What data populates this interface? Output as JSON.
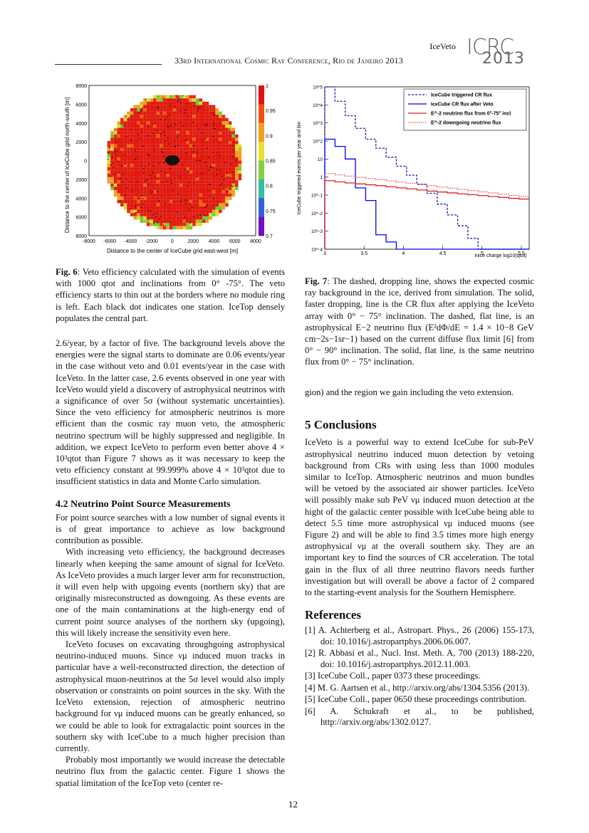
{
  "header": {
    "short_title": "IceVeto",
    "conference": "33rd International Cosmic Ray Conference, Rio de Janeiro 2013",
    "logo_top": "ICRC",
    "logo_bottom": "2013"
  },
  "fig6": {
    "ylabel": "Distance to the center of IceCube grid north-south [m]",
    "xlabel": "Distance to the center of IceCube grid east-west [m]",
    "xticks": [
      "-8000",
      "-6000",
      "-4000",
      "-2000",
      "0",
      "2000",
      "4000",
      "6000",
      "8000"
    ],
    "yticks": [
      "8000",
      "6000",
      "4000",
      "2000",
      "0",
      "2000",
      "4000",
      "6000",
      "8000"
    ],
    "cticks": [
      "1",
      "0.95",
      "0.9",
      "0.85",
      "0.8",
      "0.75",
      "0.7"
    ],
    "caption_label": "Fig. 6",
    "caption": ": Veto efficiency calculated with the simulation of events with 1000 qtot and inclinations from 0° -75°. The veto efficiency starts to thin out at the borders where no module ring is left. Each black dot indicates one station. IceTop densely populates the central part."
  },
  "chart_data": {
    "type": "line",
    "ylabel": "IceCube triggered events per year and bin",
    "xlabel": "Inice charge log10(qtot)",
    "xlim": [
      3,
      5.6
    ],
    "ylim_log10": [
      -4,
      5
    ],
    "xticks": [
      "3",
      "3.5",
      "4",
      "4.5",
      "5",
      "5.5"
    ],
    "yticks": [
      "10^5",
      "10^4",
      "10^3",
      "10^2",
      "10",
      "1",
      "10^-1",
      "10^-2",
      "10^-3",
      "10^-4"
    ],
    "bin_edges": [
      3.0,
      3.13,
      3.26,
      3.39,
      3.52,
      3.65,
      3.78,
      3.91,
      4.04,
      4.17,
      4.3,
      4.43,
      4.56,
      4.69,
      4.82,
      4.95,
      5.08,
      5.21,
      5.34,
      5.47,
      5.6
    ],
    "series": [
      {
        "name": "IceCube triggered CR flux",
        "style": "dashed",
        "color": "#1a1aa8",
        "log10_values": [
          5,
          4.2,
          3.4,
          2.7,
          2.1,
          1.6,
          1.1,
          0.6,
          0.1,
          -0.4,
          -0.9,
          -1.5,
          -2.1,
          -2.7,
          -3.4,
          -4,
          -4,
          -4,
          -4,
          -4
        ]
      },
      {
        "name": "IceCube CR flux after Veto",
        "style": "solid",
        "color": "#0000ee",
        "log10_values": [
          2.1,
          1.7,
          1.0,
          -0.6,
          -1.3,
          -3.2,
          -3.6,
          -4,
          -4,
          -4,
          -4,
          -4,
          -4,
          -4,
          -4,
          -4,
          -4,
          -4,
          -4,
          -4
        ]
      },
      {
        "name": "E^-2 neutrino flux from 0°-75° incl",
        "style": "solid",
        "color": "#e02020",
        "log10_values": [
          -0.2,
          -0.27,
          -0.33,
          -0.38,
          -0.43,
          -0.48,
          -0.54,
          -0.6,
          -0.66,
          -0.72,
          -0.78,
          -0.83,
          -0.88,
          -0.93,
          -0.98,
          -1.03,
          -1.08,
          -1.13,
          -1.18,
          -1.22
        ]
      },
      {
        "name": "E^-2 downgoing neutrino flux",
        "style": "dotted",
        "color": "#e05050",
        "log10_values": [
          0.2,
          0.12,
          0.05,
          -0.02,
          -0.08,
          -0.15,
          -0.22,
          -0.28,
          -0.35,
          -0.42,
          -0.48,
          -0.55,
          -0.62,
          -0.68,
          -0.75,
          -0.82,
          -0.88,
          -0.95,
          -1.02,
          -1.08
        ]
      }
    ]
  },
  "fig7": {
    "caption_label": "Fig. 7",
    "caption": ": The dashed, dropping line, shows the expected cosmic ray background in the ice, derived from simulation. The solid, faster dropping, line is the CR flux after applying the IceVeto array with 0° − 75° inclination. The dashed, flat line, is an astrophysical E−2 neutrino flux (E²dΦ/dE = 1.4 × 10−8 GeV cm−2s−1sr−1) based on the current diffuse flux limit [6] from 0° − 90° inclination. The solid, flat line, is the same neutrino flux from 0° − 75° inclination."
  },
  "left": {
    "p1": "2.6/year, by a factor of five. The background levels above the energies were the signal starts to dominate are 0.06 events/year in the case without veto and 0.01 events/year in the case with IceVeto. In the latter case, 2.6 events observed in one year with IceVeto would yield a discovery of astrophysical neutrinos with a significance of over 5σ (without systematic uncertainties). Since the veto efficiency for atmospheric neutrinos is more efficient than the cosmic ray muon veto, the atmospheric neutrino spectrum will be highly suppressed and negligible. In addition, we expect IceVeto to perform even better above 4 × 10³qtot than Figure 7 shows as it was necessary to keep the veto efficiency constant at 99.999% above 4 × 10³qtot due to insufficient statistics in data and Monte Carlo simulation.",
    "h42": "4.2    Neutrino Point Source Measurements",
    "p2": "For point source searches with a low number of signal events it is of great importance to achieve as low background contribution as possible.",
    "p3": "With increasing veto efficiency, the background decreases linearly when keeping the same amount of signal for IceVeto. As IceVeto provides a much larger lever arm for reconstruction, it will even help with upgoing events (northern sky) that are originally misreconstructed as downgoing. As these events are one of the main contaminations at the high-energy end of current point source analyses of the northern sky (upgoing), this will likely increase the sensitivity even here.",
    "p4": "IceVeto focuses on excavating throughgoing astrophysical neutrino-induced muons. Since νμ induced muon tracks in particular have a well-reconstructed direction, the detection of astrophysical muon-neutrinos at the 5σ level would also imply observation or constraints on point sources in the sky. With the IceVeto extension, rejection of atmospheric neutrino background for νμ induced muons can be greatly enhanced, so we could be able to look for extragalactic point sources in the southern sky with IceCube to a much higher precision than currently.",
    "p5": "Probably most importantly we would increase the detectable neutrino flux from the galactic center. Figure 1 shows the spatial limitation of the IceTop veto (center re-"
  },
  "right": {
    "p0": "gion) and the region we gain including the veto extension.",
    "h5": "5    Conclusions",
    "p1": "IceVeto is a powerful way to extend IceCube for sub-PeV astrophysical neutrino induced muon detection by vetoing background from CRs with using less than 1000 modules similar to IceTop. Atmospheric neutrinos and muon bundles will be vetoed by the associated air shower particles. IceVeto will possibly make sub PeV νμ induced muon detection at the hight of the galactic center possible with IceCube being able to detect 5.5 time more astrophysical νμ induced muons (see Figure 2) and will be able to find 3.5 times more high energy astrophysical νμ at the overall southern sky. They are an important key to find the sources of CR acceleration. The total gain in the flux of all three neutrino flavors needs further investigation but will overall be above a factor of 2 compared to the starting-event analysis for the Southern Hemisphere.",
    "href": "References",
    "refs": [
      "[1]  A. Achterberg et al., Astropart. Phys., 26 (2006) 155-173, doi: 10.1016/j.astropartphys.2006.06.007.",
      "[2]  R. Abbasi et al., Nucl. Inst. Meth. A, 700 (2013) 188-220, doi: 10.1016/j.astropartphys.2012.11.003.",
      "[3]  IceCube Coll., paper 0373 these proceedings.",
      "[4]  M. G. Aartsen et al., http://arxiv.org/abs/1304.5356 (2013).",
      "[5]  IceCube Coll., paper 0650 these proceedings contribution.",
      "[6]  A. Schukraft et al., to be published, http://arxiv.org/abs/1302.0127."
    ]
  },
  "page_number": "12"
}
